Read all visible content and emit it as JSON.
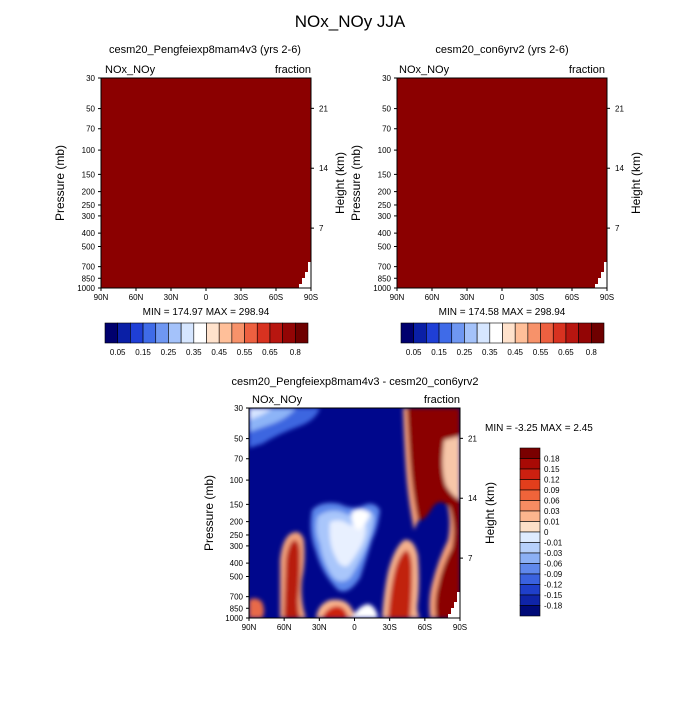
{
  "figure": {
    "title": "NOx_NOy JJA"
  },
  "chart_data": [
    {
      "type": "heatmap",
      "title": "cesm20_Pengfeiexp8mam4v3 (yrs 2-6)",
      "corner_left": "NOx_NOy",
      "corner_right": "fraction",
      "ylabel": "Pressure (mb)",
      "y2label": "Height (km)",
      "x_ticks": [
        "90N",
        "60N",
        "30N",
        "0",
        "30S",
        "60S",
        "90S"
      ],
      "y_ticks": [
        "30",
        "50",
        "70",
        "100",
        "150",
        "200",
        "250",
        "300",
        "400",
        "500",
        "700",
        "850",
        "1000"
      ],
      "y2_ticks": [
        "21",
        "14",
        "7"
      ],
      "x_range": [
        90,
        -90
      ],
      "y_range_mb": [
        30,
        1000
      ],
      "y_scale": "log",
      "stats": "MIN = 174.97  MAX = 298.94",
      "dominant_fill": "#8b0000",
      "colorbar": {
        "orientation": "horizontal",
        "labels": [
          "0.05",
          "0.15",
          "0.25",
          "0.35",
          "0.45",
          "0.55",
          "0.65",
          "0.8"
        ],
        "colors": [
          "#00006e",
          "#0a1fa6",
          "#1f3fd6",
          "#3f6be8",
          "#6f97f2",
          "#a4c2fa",
          "#d6e6ff",
          "#ffffff",
          "#ffe2cc",
          "#ffbf99",
          "#f7926a",
          "#ed6040",
          "#d83220",
          "#b81610",
          "#930505",
          "#6e0000"
        ]
      }
    },
    {
      "type": "heatmap",
      "title": "cesm20_con6yrv2 (yrs 2-6)",
      "corner_left": "NOx_NOy",
      "corner_right": "fraction",
      "ylabel": "Pressure (mb)",
      "y2label": "Height (km)",
      "x_ticks": [
        "90N",
        "60N",
        "30N",
        "0",
        "30S",
        "60S",
        "90S"
      ],
      "y_ticks": [
        "30",
        "50",
        "70",
        "100",
        "150",
        "200",
        "250",
        "300",
        "400",
        "500",
        "700",
        "850",
        "1000"
      ],
      "y2_ticks": [
        "21",
        "14",
        "7"
      ],
      "x_range": [
        90,
        -90
      ],
      "y_range_mb": [
        30,
        1000
      ],
      "y_scale": "log",
      "stats": "MIN = 174.58  MAX = 298.94",
      "dominant_fill": "#8b0000",
      "colorbar": {
        "orientation": "horizontal",
        "labels": [
          "0.05",
          "0.15",
          "0.25",
          "0.35",
          "0.45",
          "0.55",
          "0.65",
          "0.8"
        ],
        "colors": [
          "#00006e",
          "#0a1fa6",
          "#1f3fd6",
          "#3f6be8",
          "#6f97f2",
          "#a4c2fa",
          "#d6e6ff",
          "#ffffff",
          "#ffe2cc",
          "#ffbf99",
          "#f7926a",
          "#ed6040",
          "#d83220",
          "#b81610",
          "#930505",
          "#6e0000"
        ]
      }
    },
    {
      "type": "heatmap",
      "title": "cesm20_Pengfeiexp8mam4v3 - cesm20_con6yrv2",
      "corner_left": "NOx_NOy",
      "corner_right": "fraction",
      "ylabel": "Pressure (mb)",
      "y2label": "Height (km)",
      "x_ticks": [
        "90N",
        "60N",
        "30N",
        "0",
        "30S",
        "60S",
        "90S"
      ],
      "y_ticks": [
        "30",
        "50",
        "70",
        "100",
        "150",
        "200",
        "250",
        "300",
        "400",
        "500",
        "700",
        "850",
        "1000"
      ],
      "y2_ticks": [
        "21",
        "14",
        "7"
      ],
      "x_range": [
        90,
        -90
      ],
      "y_range_mb": [
        30,
        1000
      ],
      "y_scale": "log",
      "stats": "MIN =  -3.25  MAX =   2.45",
      "colorbar": {
        "orientation": "vertical",
        "labels": [
          "0.18",
          "0.15",
          "0.12",
          "0.09",
          "0.06",
          "0.03",
          "0.01",
          "0",
          "-0.01",
          "-0.03",
          "-0.06",
          "-0.09",
          "-0.12",
          "-0.15",
          "-0.18"
        ],
        "colors": [
          "#7a0000",
          "#a80a05",
          "#cc2010",
          "#e23e1c",
          "#f0643a",
          "#f78c62",
          "#fbb58e",
          "#fde0c8",
          "#deebff",
          "#b7d0fb",
          "#8cb0f5",
          "#5f88ec",
          "#3a62df",
          "#1f3fca",
          "#0f24a8",
          "#000a78"
        ]
      }
    }
  ]
}
